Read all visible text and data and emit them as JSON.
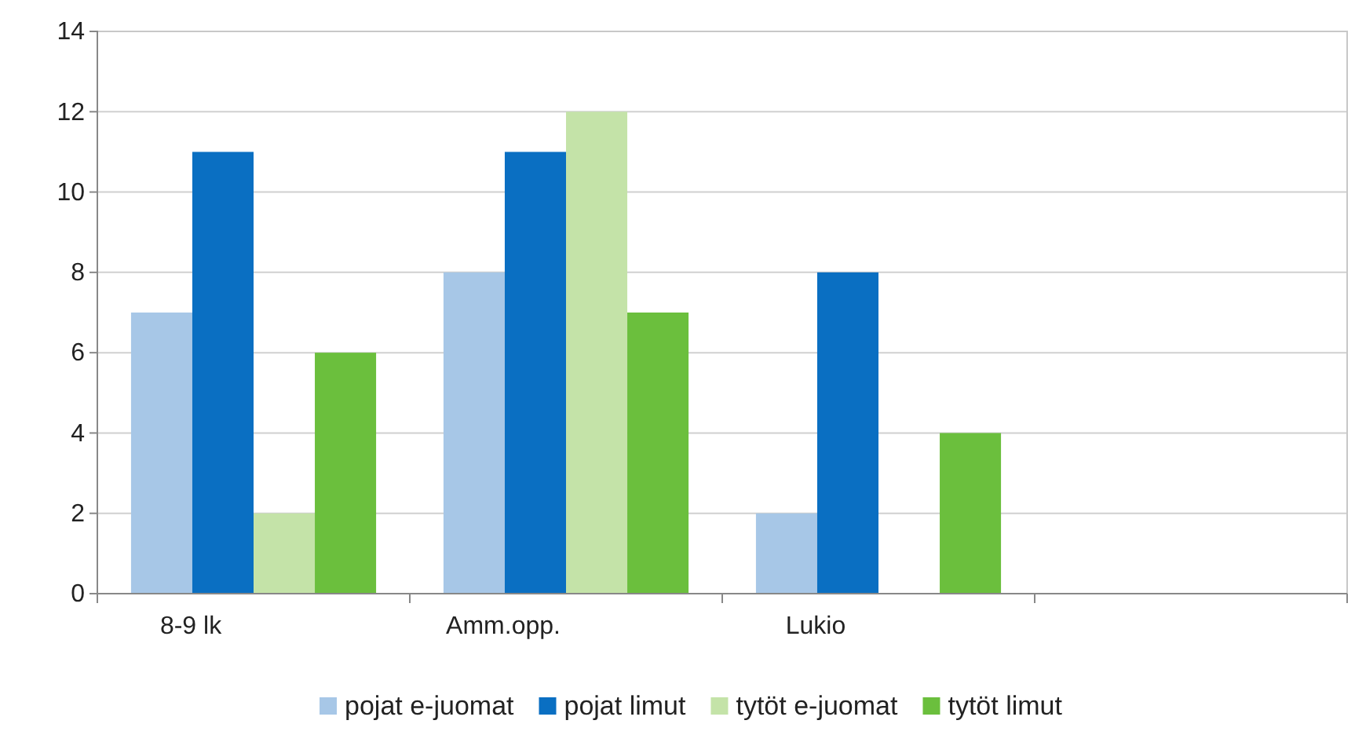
{
  "chart_data": {
    "type": "bar",
    "categories": [
      "8-9 lk",
      "Amm.opp.",
      "Lukio",
      null
    ],
    "series": [
      {
        "name": "pojat e-juomat",
        "color": "#a7c7e7",
        "values": [
          7,
          8,
          2,
          null
        ]
      },
      {
        "name": "pojat limut",
        "color": "#0a6fc2",
        "values": [
          11,
          11,
          8,
          null
        ]
      },
      {
        "name": "tytöt e-juomat",
        "color": "#c4e3a8",
        "values": [
          2,
          12,
          null,
          null
        ]
      },
      {
        "name": "tytöt limut",
        "color": "#6bbf3d",
        "values": [
          6,
          7,
          4,
          null
        ]
      }
    ],
    "ylim": [
      0,
      14
    ],
    "yticks": [
      0,
      2,
      4,
      6,
      8,
      10,
      12,
      14
    ],
    "grid": "y",
    "legend": "bottom"
  }
}
